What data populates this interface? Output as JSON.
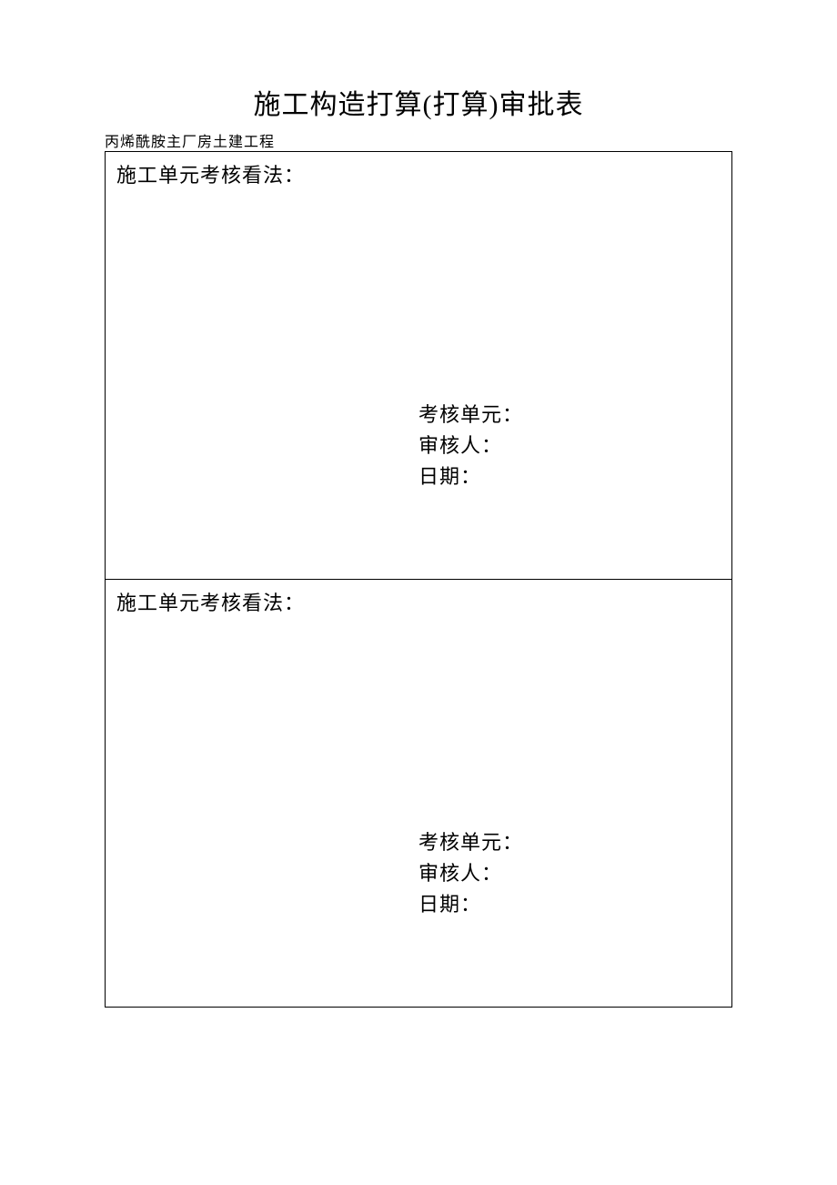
{
  "page": {
    "title": "施工构造打算(打算)审批表",
    "subtitle": "丙烯酰胺主厂房土建工程",
    "background_color": "#ffffff",
    "text_color": "#000000",
    "border_color": "#000000",
    "title_fontsize": 30,
    "subtitle_fontsize": 16,
    "body_fontsize": 22
  },
  "cells": [
    {
      "heading": "施工单元考核看法：",
      "signature": {
        "unit_label": "考核单元：",
        "reviewer_label": "审核人：",
        "date_label": "日期："
      }
    },
    {
      "heading": "施工单元考核看法：",
      "signature": {
        "unit_label": "考核单元：",
        "reviewer_label": "审核人：",
        "date_label": "日期："
      }
    }
  ]
}
